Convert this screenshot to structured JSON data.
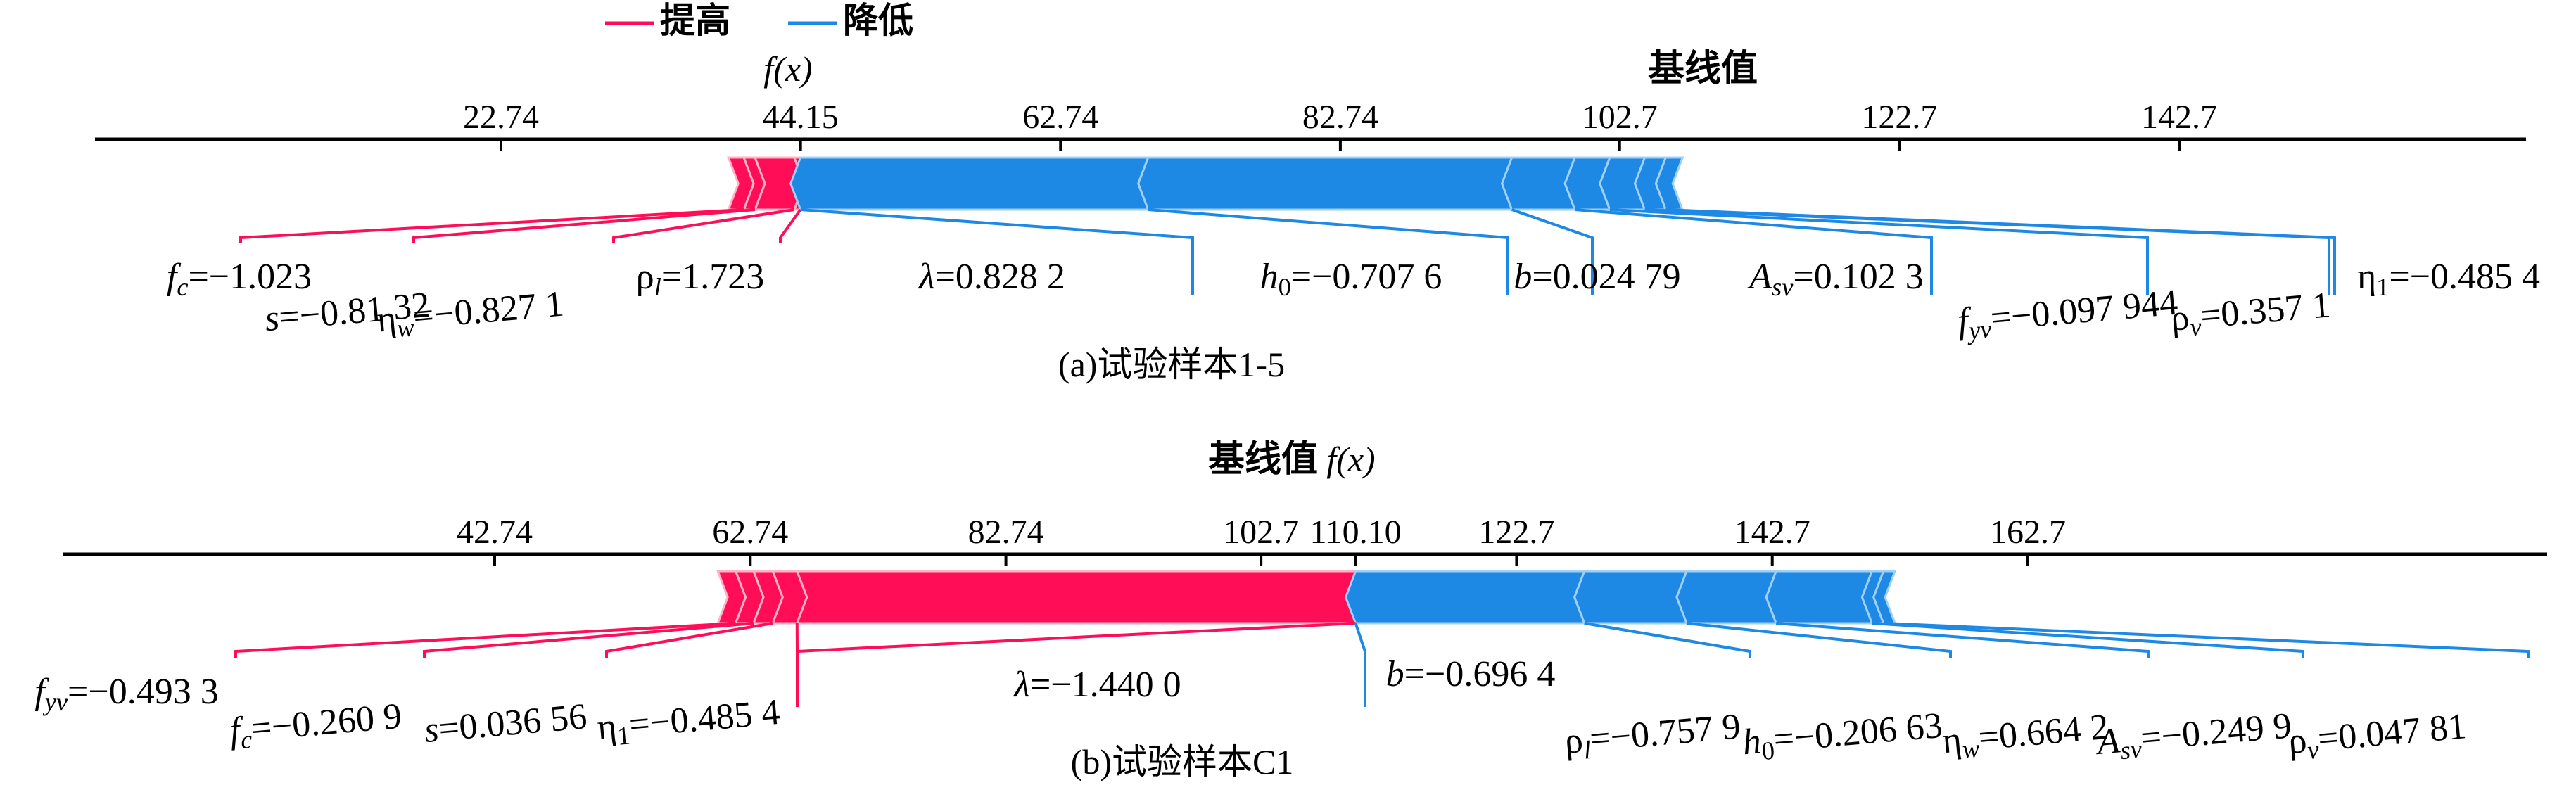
{
  "legend": {
    "items": [
      {
        "label": "提高",
        "color": "#ff0d57"
      },
      {
        "label": "降低",
        "color": "#1e88e5"
      }
    ]
  },
  "chart_data": [
    {
      "type": "force",
      "caption": "(a)试验样本1-5",
      "fx_label": "f(x)",
      "base_label": "基线值",
      "ticks": [
        "22.74",
        "44.15",
        "62.74",
        "82.74",
        "102.7",
        "122.7",
        "142.7"
      ],
      "tick_values": [
        22.74,
        44.15,
        62.74,
        82.74,
        102.7,
        122.7,
        142.7
      ],
      "output_value": 44.15,
      "base_value": 102.7,
      "segments": [
        {
          "feature": "f_c",
          "text": "fc=−1.023",
          "effect": "increase",
          "from": 39.0,
          "to": 40.1
        },
        {
          "feature": "s",
          "text": "s=−0.81 32",
          "effect": "increase",
          "from": 40.1,
          "to": 40.9
        },
        {
          "feature": "η_w",
          "text": "ηw=−0.827 1",
          "effect": "increase",
          "from": 40.9,
          "to": 43.7
        },
        {
          "feature": "ρ_l",
          "text": "ρl=1.723",
          "effect": "increase",
          "from": 43.7,
          "to": 44.15
        },
        {
          "feature": "λ",
          "text": "λ=0.828 2",
          "effect": "decrease",
          "from": 44.15,
          "to": 69.0
        },
        {
          "feature": "h_0",
          "text": "h0=−0.707 6",
          "effect": "decrease",
          "from": 69.0,
          "to": 95.0
        },
        {
          "feature": "b",
          "text": "b=0.024 79",
          "effect": "decrease",
          "from": 95.0,
          "to": 99.5
        },
        {
          "feature": "A_sv",
          "text": "Asv=0.102 3",
          "effect": "decrease",
          "from": 99.5,
          "to": 102.0
        },
        {
          "feature": "f_yv",
          "text": "fyv=−0.097 944",
          "effect": "decrease",
          "from": 102.0,
          "to": 104.5
        },
        {
          "feature": "ρ_v",
          "text": "ρv=0.357 1",
          "effect": "decrease",
          "from": 104.5,
          "to": 106.0
        },
        {
          "feature": "η_1",
          "text": "η1=−0.485 4",
          "effect": "decrease",
          "from": 106.0,
          "to": 107.2
        }
      ]
    },
    {
      "type": "force",
      "caption": "(b)试验样本C1",
      "fx_label": "f(x)",
      "base_label": "基线值",
      "ticks": [
        "42.74",
        "62.74",
        "82.74",
        "102.7",
        "110.10",
        "122.7",
        "142.7",
        "162.7"
      ],
      "tick_values": [
        42.74,
        62.74,
        82.74,
        102.7,
        110.1,
        122.7,
        142.7,
        162.7
      ],
      "output_value": 110.1,
      "base_value": 110.1,
      "segments": [
        {
          "feature": "f_yv",
          "text": "fyv=−0.493 3",
          "effect": "increase",
          "from": 60.2,
          "to": 61.6
        },
        {
          "feature": "f_c",
          "text": "fc=−0.260 9",
          "effect": "increase",
          "from": 61.6,
          "to": 63.0
        },
        {
          "feature": "s",
          "text": "s=0.036 56",
          "effect": "increase",
          "from": 63.0,
          "to": 64.5
        },
        {
          "feature": "η_1",
          "text": "η1=−0.485 4",
          "effect": "increase",
          "from": 64.5,
          "to": 66.4
        },
        {
          "feature": "λ",
          "text": "λ=−1.440 0",
          "effect": "increase",
          "from": 66.4,
          "to": 110.1
        },
        {
          "feature": "b",
          "text": "b=−0.696 4",
          "effect": "decrease",
          "from": 110.1,
          "to": 128.0
        },
        {
          "feature": "ρ_l",
          "text": "ρl=−0.757 9",
          "effect": "decrease",
          "from": 128.0,
          "to": 136.0
        },
        {
          "feature": "h_0",
          "text": "h0=−0.206 63",
          "effect": "decrease",
          "from": 136.0,
          "to": 143.0
        },
        {
          "feature": "η_w",
          "text": "ηw=0.664 2",
          "effect": "decrease",
          "from": 143.0,
          "to": 150.5
        },
        {
          "feature": "A_sv",
          "text": "Asv=−0.249 9",
          "effect": "decrease",
          "from": 150.5,
          "to": 151.4
        },
        {
          "feature": "ρ_v",
          "text": "ρv=0.047 81",
          "effect": "decrease",
          "from": 151.4,
          "to": 152.3
        }
      ]
    }
  ]
}
